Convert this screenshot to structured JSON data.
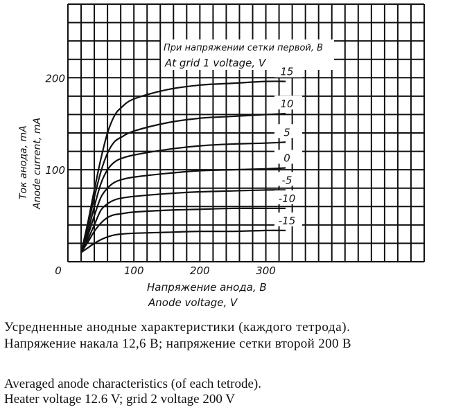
{
  "chart_data": {
    "type": "line",
    "x_range": [
      0,
      540
    ],
    "y_range": [
      0,
      280
    ],
    "x_ticks": [
      {
        "value": 0,
        "label": "0"
      },
      {
        "value": 100,
        "label": "100"
      },
      {
        "value": 200,
        "label": "200"
      },
      {
        "value": 300,
        "label": "300"
      }
    ],
    "y_ticks": [
      {
        "value": 100,
        "label": "100"
      },
      {
        "value": 200,
        "label": "200"
      }
    ],
    "xlabel_ru": "Напряжение анода, В",
    "xlabel_en": "Anode voltage, V",
    "ylabel_ru": "Ток анода, mA",
    "ylabel_en": "Anode current, mA",
    "legend_title_ru": "При напряжении сетки первой, В",
    "legend_title_en": "At grid 1 voltage, V",
    "grid": true,
    "series": [
      {
        "name": "15",
        "x": [
          20,
          30,
          40,
          50,
          60,
          70,
          80,
          100,
          150,
          200,
          250,
          300,
          330
        ],
        "y": [
          10,
          42,
          78,
          112,
          140,
          158,
          167,
          177,
          187,
          192,
          194,
          196,
          196
        ]
      },
      {
        "name": "10",
        "x": [
          20,
          30,
          40,
          50,
          60,
          70,
          80,
          100,
          150,
          200,
          250,
          300,
          330
        ],
        "y": [
          10,
          38,
          70,
          98,
          118,
          130,
          135,
          142,
          151,
          156,
          158,
          160,
          161
        ]
      },
      {
        "name": "5",
        "x": [
          20,
          30,
          40,
          50,
          60,
          70,
          80,
          100,
          150,
          200,
          250,
          300,
          330
        ],
        "y": [
          10,
          32,
          60,
          85,
          100,
          108,
          112,
          116,
          122,
          126,
          128,
          129,
          130
        ]
      },
      {
        "name": "0",
        "x": [
          20,
          30,
          40,
          50,
          60,
          70,
          80,
          100,
          150,
          200,
          250,
          300,
          330
        ],
        "y": [
          10,
          28,
          50,
          70,
          80,
          86,
          89,
          92,
          96,
          99,
          100,
          101,
          102
        ]
      },
      {
        "name": "-5",
        "x": [
          20,
          30,
          40,
          50,
          60,
          70,
          80,
          100,
          150,
          200,
          250,
          300,
          330
        ],
        "y": [
          10,
          24,
          40,
          56,
          63,
          67,
          69,
          71,
          74,
          76,
          77,
          78,
          78
        ]
      },
      {
        "name": "-10",
        "x": [
          20,
          30,
          40,
          50,
          60,
          70,
          80,
          100,
          150,
          200,
          250,
          300,
          330
        ],
        "y": [
          10,
          21,
          33,
          42,
          48,
          51,
          52,
          54,
          56,
          57,
          58,
          58,
          58
        ]
      },
      {
        "name": "-15",
        "x": [
          20,
          30,
          40,
          50,
          60,
          70,
          80,
          100,
          150,
          200,
          250,
          300,
          330
        ],
        "y": [
          10,
          15,
          20,
          24,
          27,
          29,
          30,
          31,
          32,
          33,
          33,
          34,
          34
        ]
      }
    ]
  },
  "captions": {
    "ru_line1": "Усредненные   анодные   характеристики   (каждого   тетрода).",
    "ru_line2": "Напряжение  накала  12,6  В;  напряжение  сетки  второй  200  В",
    "en_line1": "Averaged anode characteristics (of each tetrode).",
    "en_line2": "Heater voltage 12.6 V; grid 2 voltage 200 V"
  }
}
